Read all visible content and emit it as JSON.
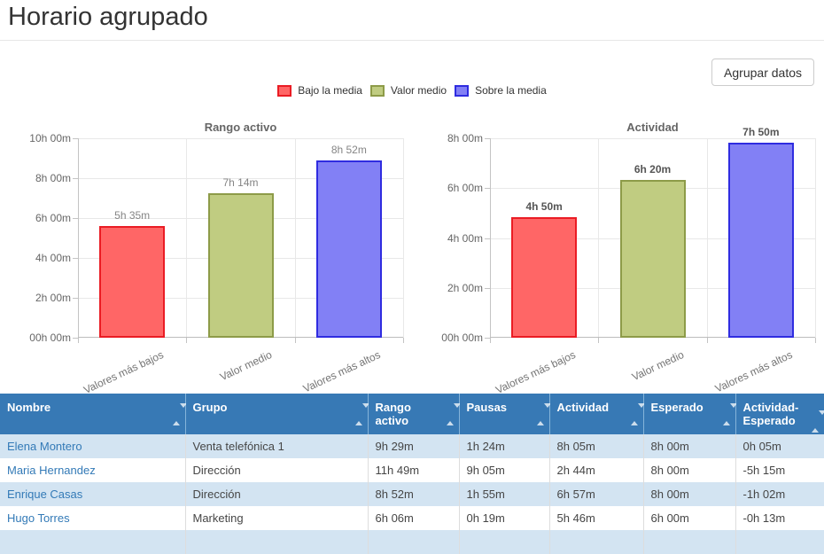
{
  "page": {
    "title": "Horario agrupado"
  },
  "toolbar": {
    "group_button_label": "Agrupar datos"
  },
  "palette": [
    {
      "label": "Bajo la media",
      "fill": "#ff6666",
      "border": "#ea1c24"
    },
    {
      "label": "Valor medio",
      "fill": "#c0cc81",
      "border": "#8d9b48"
    },
    {
      "label": "Sobre la media",
      "fill": "#8280f5",
      "border": "#2f2ce0"
    }
  ],
  "chart_data": [
    {
      "type": "bar",
      "title": "Rango activo",
      "categories": [
        "Valores más bajos",
        "Valor medio",
        "Valores más altos"
      ],
      "values": [
        5.58,
        7.23,
        8.87
      ],
      "value_labels": [
        "5h 35m",
        "7h 14m",
        "8h 52m"
      ],
      "xlabel": "",
      "ylabel": "",
      "ylim": [
        0,
        10
      ],
      "y_ticks": [
        {
          "v": 10,
          "label": "10h 00m"
        },
        {
          "v": 8,
          "label": "8h 00m"
        },
        {
          "v": 6,
          "label": "6h 00m"
        },
        {
          "v": 4,
          "label": "4h 00m"
        },
        {
          "v": 2,
          "label": "2h 00m"
        },
        {
          "v": 0,
          "label": "00h 00m"
        }
      ],
      "grid": true,
      "legend_position": "shared-top"
    },
    {
      "type": "bar",
      "title": "Actividad",
      "categories": [
        "Valores más bajos",
        "Valor medio",
        "Valores más altos"
      ],
      "values": [
        4.83,
        6.33,
        7.83
      ],
      "value_labels": [
        "4h 50m",
        "6h 20m",
        "7h 50m"
      ],
      "xlabel": "",
      "ylabel": "",
      "ylim": [
        0,
        8
      ],
      "y_ticks": [
        {
          "v": 8,
          "label": "8h 00m"
        },
        {
          "v": 6,
          "label": "6h 00m"
        },
        {
          "v": 4,
          "label": "4h 00m"
        },
        {
          "v": 2,
          "label": "2h 00m"
        },
        {
          "v": 0,
          "label": "00h 00m"
        }
      ],
      "grid": true,
      "legend_position": "shared-top"
    }
  ],
  "table": {
    "columns": [
      {
        "key": "nombre",
        "label": "Nombre",
        "sortable": true
      },
      {
        "key": "grupo",
        "label": "Grupo",
        "sortable": true
      },
      {
        "key": "rango-activo",
        "label": "Rango activo",
        "sortable": true
      },
      {
        "key": "pausas",
        "label": "Pausas",
        "sortable": true
      },
      {
        "key": "actividad",
        "label": "Actividad",
        "sortable": true
      },
      {
        "key": "esperado",
        "label": "Esperado",
        "sortable": true
      },
      {
        "key": "actividad-esperado",
        "label": "Actividad-Esperado",
        "sortable": true
      }
    ],
    "rows": [
      [
        "Elena Montero",
        "Venta telefónica 1",
        "9h 29m",
        "1h 24m",
        "8h 05m",
        "8h 00m",
        "0h 05m"
      ],
      [
        "Maria Hernandez",
        "Dirección",
        "11h 49m",
        "9h 05m",
        "2h 44m",
        "8h 00m",
        "-5h 15m"
      ],
      [
        "Enrique Casas",
        "Dirección",
        "8h 52m",
        "1h 55m",
        "6h 57m",
        "8h 00m",
        "-1h 02m"
      ],
      [
        "Hugo Torres",
        "Marketing",
        "6h 06m",
        "0h 19m",
        "5h 46m",
        "6h 00m",
        "-0h 13m"
      ]
    ]
  }
}
